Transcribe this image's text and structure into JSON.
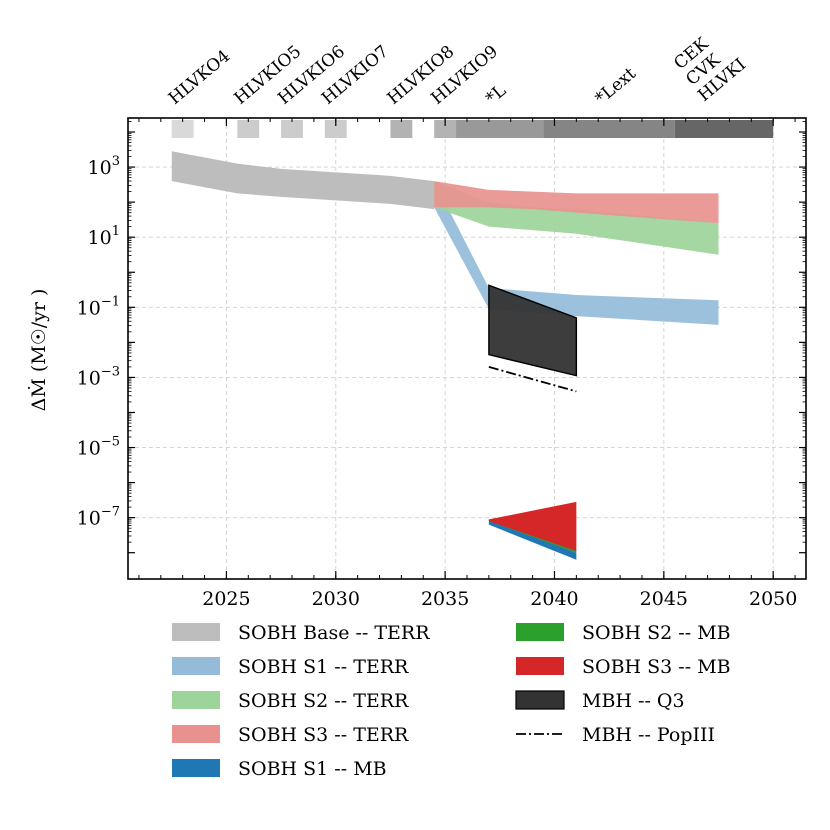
{
  "chart_data": {
    "type": "area",
    "title": "",
    "xlabel": "",
    "ylabel": "ΔṀ (M☉/yr )",
    "xlim": [
      2020.5,
      2051.5
    ],
    "ylim_log10": [
      -8.75,
      4.4
    ],
    "x_ticks": [
      2025,
      2030,
      2035,
      2040,
      2045,
      2050
    ],
    "y_ticks": [
      {
        "exp": 3,
        "label": "3"
      },
      {
        "exp": 1,
        "label": "1"
      },
      {
        "exp": -1,
        "label": "−1"
      },
      {
        "exp": -3,
        "label": "−3"
      },
      {
        "exp": -5,
        "label": "−5"
      },
      {
        "exp": -7,
        "label": "−7"
      }
    ],
    "y_tick_base": "10",
    "grid": true,
    "legend_position": "below",
    "detector_timeline": [
      {
        "label": "HLVKO4",
        "x": [
          2022.5,
          2023.5
        ],
        "shade": 0.85
      },
      {
        "label": "HLVKIO5",
        "x": [
          2025.5,
          2026.5
        ],
        "shade": 0.8
      },
      {
        "label": "HLVKIO6",
        "x": [
          2027.5,
          2028.5
        ],
        "shade": 0.8
      },
      {
        "label": "HLVKIO7",
        "x": [
          2029.5,
          2030.5
        ],
        "shade": 0.8
      },
      {
        "label": "HLVKIO8",
        "x": [
          2032.5,
          2033.5
        ],
        "shade": 0.7
      },
      {
        "label": "HLVKIO9",
        "x": [
          2034.5,
          2035.5
        ],
        "shade": 0.7
      },
      {
        "label": "*L",
        "x": [
          2035.5,
          2039.5
        ],
        "shade": 0.6
      },
      {
        "label": "*Lext",
        "x": [
          2039.5,
          2045.5
        ],
        "shade": 0.52
      },
      {
        "label": "CEK",
        "x": [
          2045.5,
          2050
        ],
        "shade": 0.4
      },
      {
        "label": "CVK",
        "x": [
          2045.5,
          2050
        ],
        "shade": 0.4
      },
      {
        "label": "HLVKI",
        "x": [
          2045.5,
          2050
        ],
        "shade": 0.4
      }
    ],
    "series": [
      {
        "name": "SOBH Base -- TERR",
        "kind": "band",
        "color": "#bdbdbd",
        "x": [
          2022.5,
          2025.5,
          2027.5,
          2030,
          2032.5,
          2034.5
        ],
        "upper": [
          3.45,
          3.1,
          2.95,
          2.85,
          2.75,
          2.6
        ],
        "lower": [
          2.6,
          2.25,
          2.15,
          2.05,
          1.95,
          1.8
        ]
      },
      {
        "name": "SOBH S1 -- TERR",
        "kind": "band",
        "color": "#94bcd9",
        "x": [
          2034.5,
          2037,
          2039,
          2041,
          2047.5
        ],
        "upper": [
          2.6,
          -0.45,
          -0.55,
          -0.65,
          -0.8
        ],
        "lower": [
          1.85,
          -1.05,
          -1.15,
          -1.25,
          -1.5
        ]
      },
      {
        "name": "SOBH S2 -- TERR",
        "kind": "band",
        "color": "#9dd49a",
        "x": [
          2034.5,
          2037,
          2039,
          2041,
          2047.5
        ],
        "upper": [
          2.6,
          2.0,
          1.85,
          1.8,
          1.4
        ],
        "lower": [
          1.85,
          1.3,
          1.2,
          1.1,
          0.5
        ]
      },
      {
        "name": "SOBH S3 -- TERR",
        "kind": "band",
        "color": "#e8928f",
        "x": [
          2034.5,
          2037,
          2039,
          2041,
          2047.5
        ],
        "upper": [
          2.6,
          2.35,
          2.3,
          2.25,
          2.25
        ],
        "lower": [
          1.85,
          1.85,
          1.8,
          1.7,
          1.4
        ]
      },
      {
        "name": "SOBH S1 -- MB",
        "kind": "band",
        "color": "#1f77b4",
        "x": [
          2037,
          2041
        ],
        "upper": [
          -7.05,
          -8.0
        ],
        "lower": [
          -7.2,
          -8.2
        ]
      },
      {
        "name": "SOBH S2 -- MB",
        "kind": "band",
        "color": "#2ca02c",
        "x": [
          2037,
          2041
        ],
        "upper": [
          -7.05,
          -7.9
        ],
        "lower": [
          -7.1,
          -8.0
        ]
      },
      {
        "name": "SOBH S3 -- MB",
        "kind": "band",
        "color": "#d62728",
        "x": [
          2037,
          2041
        ],
        "upper": [
          -7.05,
          -6.55
        ],
        "lower": [
          -7.1,
          -7.95
        ]
      },
      {
        "name": "MBH -- Q3",
        "kind": "band",
        "color": "#333333",
        "x": [
          2037,
          2041
        ],
        "upper": [
          -0.37,
          -1.3
        ],
        "lower": [
          -2.35,
          -2.95
        ]
      },
      {
        "name": "MBH -- PopIII",
        "kind": "line",
        "color": "#000000",
        "x": [
          2037,
          2041
        ],
        "y": [
          -2.7,
          -3.4
        ]
      }
    ],
    "legend_order": [
      "SOBH Base -- TERR",
      "SOBH S1 -- TERR",
      "SOBH S2 -- TERR",
      "SOBH S3 -- TERR",
      "SOBH S1 -- MB",
      "SOBH S2 -- MB",
      "SOBH S3 -- MB",
      "MBH -- Q3",
      "MBH -- PopIII"
    ]
  }
}
